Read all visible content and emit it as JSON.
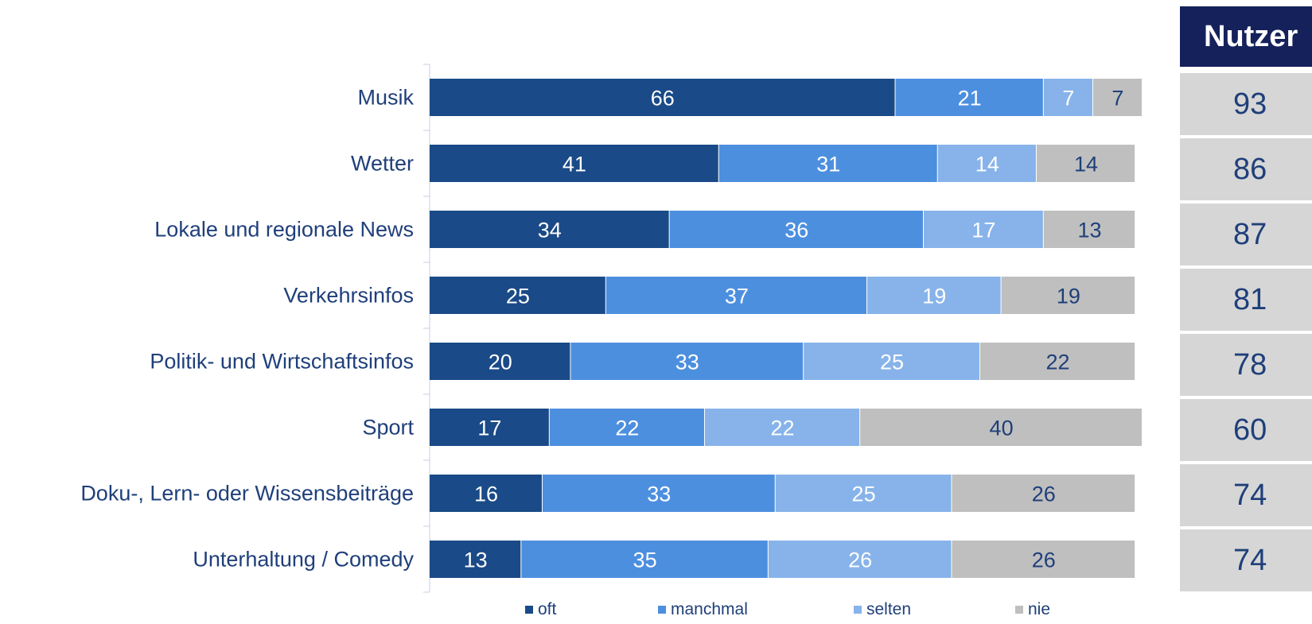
{
  "chart_data": {
    "type": "bar",
    "orientation": "horizontal",
    "stacked": true,
    "categories": [
      "Musik",
      "Wetter",
      "Lokale und regionale News",
      "Verkehrsinfos",
      "Politik- und Wirtschaftsinfos",
      "Sport",
      "Doku-, Lern- oder Wissensbeiträge",
      "Unterhaltung / Comedy"
    ],
    "series": [
      {
        "name": "oft",
        "color": "#1a4a87",
        "label_color": "#ffffff",
        "values": [
          66,
          41,
          34,
          25,
          20,
          17,
          16,
          13
        ]
      },
      {
        "name": "manchmal",
        "color": "#4d8fdf",
        "label_color": "#ffffff",
        "values": [
          21,
          31,
          36,
          37,
          33,
          22,
          33,
          35
        ]
      },
      {
        "name": "selten",
        "color": "#87b3ea",
        "label_color": "#ffffff",
        "values": [
          7,
          14,
          17,
          19,
          25,
          22,
          25,
          26
        ]
      },
      {
        "name": "nie",
        "color": "#bfbfbf",
        "label_color": "#1f3f7a",
        "values": [
          7,
          14,
          13,
          19,
          22,
          40,
          26,
          26
        ]
      }
    ],
    "xlim": [
      0,
      101
    ],
    "legend_position": "bottom",
    "grid": false
  },
  "side_table": {
    "header": "Nutzer",
    "values": [
      "93",
      "86",
      "87",
      "81",
      "78",
      "60",
      "74",
      "74"
    ]
  }
}
